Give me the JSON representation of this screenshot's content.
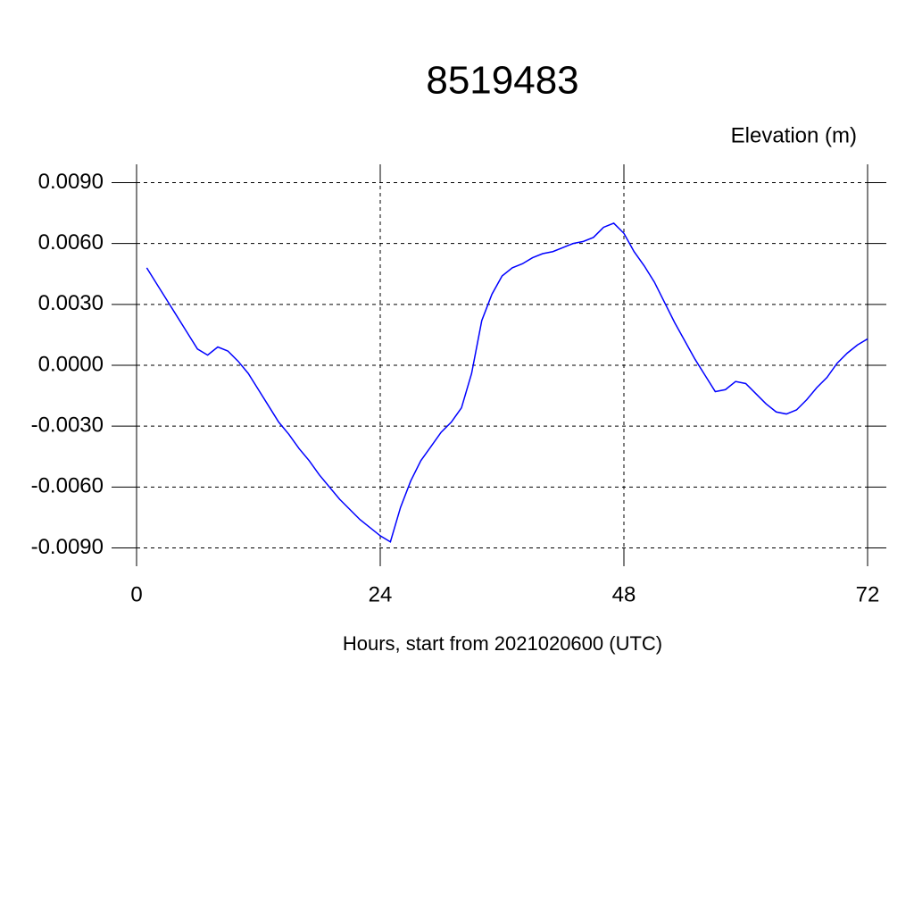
{
  "chart_data": {
    "type": "line",
    "title": "8519483",
    "ylabel": "Elevation (m)",
    "xlabel": "Hours, start from 2021020600 (UTC)",
    "x": [
      1,
      2,
      3,
      4,
      5,
      6,
      7,
      8,
      9,
      10,
      11,
      12,
      13,
      14,
      15,
      16,
      17,
      18,
      19,
      20,
      21,
      22,
      23,
      24,
      25,
      26,
      27,
      28,
      29,
      30,
      31,
      32,
      33,
      34,
      35,
      36,
      37,
      38,
      39,
      40,
      41,
      42,
      43,
      44,
      45,
      46,
      47,
      48,
      49,
      50,
      51,
      52,
      53,
      54,
      55,
      56,
      57,
      58,
      59,
      60,
      61,
      62,
      63,
      64,
      65,
      66,
      67,
      68,
      69,
      70,
      71,
      72
    ],
    "series": [
      {
        "name": "Elevation",
        "color": "#0000ff",
        "values": [
          0.0048,
          0.004,
          0.0032,
          0.0024,
          0.0016,
          0.0008,
          0.0005,
          0.0009,
          0.0007,
          0.0002,
          -0.0004,
          -0.0012,
          -0.002,
          -0.0028,
          -0.0034,
          -0.0041,
          -0.0047,
          -0.0054,
          -0.006,
          -0.0066,
          -0.0071,
          -0.0076,
          -0.008,
          -0.0084,
          -0.0087,
          -0.007,
          -0.0057,
          -0.0047,
          -0.004,
          -0.0033,
          -0.0028,
          -0.0021,
          -0.0004,
          0.0022,
          0.0035,
          0.0044,
          0.0048,
          0.005,
          0.0053,
          0.0055,
          0.0056,
          0.0058,
          0.006,
          0.0061,
          0.0063,
          0.0068,
          0.007,
          0.0065,
          0.0056,
          0.0049,
          0.0041,
          0.0031,
          0.0021,
          0.0012,
          0.0003,
          -0.0005,
          -0.0013,
          -0.0012,
          -0.0008,
          -0.0009,
          -0.0014,
          -0.0019,
          -0.0023,
          -0.0024,
          -0.0022,
          -0.0017,
          -0.0011,
          -0.0006,
          0.0001,
          0.0006,
          0.001,
          0.0013
        ]
      }
    ],
    "xlim": [
      0,
      72
    ],
    "xticks": [
      0,
      24,
      48,
      72
    ],
    "ylim": [
      -0.0099,
      0.0099
    ],
    "yticks": [
      {
        "value": -0.009,
        "label": "-0.0090"
      },
      {
        "value": -0.006,
        "label": "-0.0060"
      },
      {
        "value": -0.003,
        "label": "-0.0030"
      },
      {
        "value": 0,
        "label": "0.0000"
      },
      {
        "value": 0.003,
        "label": "0.0030"
      },
      {
        "value": 0.006,
        "label": "0.0060"
      },
      {
        "value": 0.009,
        "label": "0.0090"
      }
    ],
    "grid": true
  }
}
